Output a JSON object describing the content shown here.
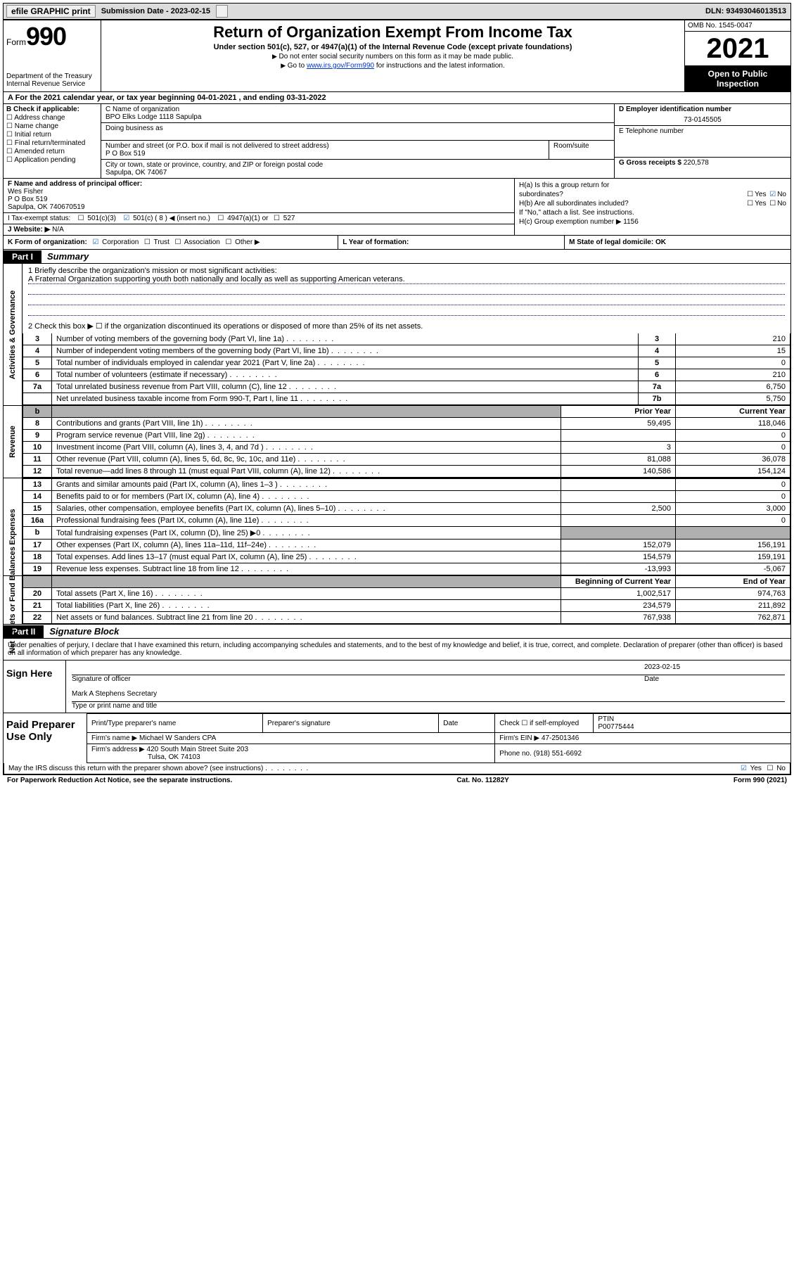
{
  "topbar": {
    "efile": "efile GRAPHIC print",
    "sub_label": "Submission Date - 2023-02-15",
    "dln": "DLN: 93493046013513"
  },
  "header": {
    "form_prefix": "Form",
    "form_number": "990",
    "dept": "Department of the Treasury",
    "irs": "Internal Revenue Service",
    "title": "Return of Organization Exempt From Income Tax",
    "sub": "Under section 501(c), 527, or 4947(a)(1) of the Internal Revenue Code (except private foundations)",
    "note1": "Do not enter social security numbers on this form as it may be made public.",
    "note2_pre": "Go to ",
    "note2_link": "www.irs.gov/Form990",
    "note2_post": " for instructions and the latest information.",
    "omb": "OMB No. 1545-0047",
    "year": "2021",
    "open": "Open to Public Inspection"
  },
  "row_a": "A For the 2021 calendar year, or tax year beginning 04-01-2021  , and ending 03-31-2022",
  "b": {
    "label": "B Check if applicable:",
    "opts": [
      "Address change",
      "Name change",
      "Initial return",
      "Final return/terminated",
      "Amended return",
      "Application pending"
    ]
  },
  "c": {
    "name_lbl": "C Name of organization",
    "name": "BPO Elks Lodge 1118 Sapulpa",
    "dba": "Doing business as",
    "addr_lbl": "Number and street (or P.O. box if mail is not delivered to street address)",
    "addr": "P O Box 519",
    "room_lbl": "Room/suite",
    "city_lbl": "City or town, state or province, country, and ZIP or foreign postal code",
    "city": "Sapulpa, OK  74067"
  },
  "d": {
    "ein_lbl": "D Employer identification number",
    "ein": "73-0145505",
    "tel_lbl": "E Telephone number",
    "gross_lbl": "G Gross receipts $ ",
    "gross": "220,578"
  },
  "f": {
    "label": "F Name and address of principal officer:",
    "name": "Wes Fisher",
    "addr1": "P O Box 519",
    "addr2": "Sapulpa, OK  740670519"
  },
  "i": {
    "label": "I  Tax-exempt status:",
    "c3": "501(c)(3)",
    "c8": "501(c) ( 8 ) ◀ (insert no.)",
    "a1": "4947(a)(1) or",
    "s527": "527"
  },
  "j": {
    "label": "J  Website: ▶",
    "val": "N/A"
  },
  "h": {
    "ha_l1": "H(a)  Is this a group return for",
    "ha_l2": "subordinates?",
    "hb_l1": "H(b)  Are all subordinates included?",
    "hb_note": "If \"No,\" attach a list. See instructions.",
    "hc": "H(c)  Group exemption number ▶  1156"
  },
  "k": {
    "label": "K Form of organization:",
    "corp": "Corporation",
    "trust": "Trust",
    "assoc": "Association",
    "other": "Other ▶",
    "l_label": "L Year of formation:",
    "m_label": "M State of legal domicile: OK"
  },
  "part1": {
    "tab": "Part I",
    "title": "Summary"
  },
  "governance": {
    "vlabel": "Activities & Governance",
    "l1a": "1 Briefly describe the organization's mission or most significant activities:",
    "l1b": "A Fraternal Organization supporting youth both nationally and locally as well as supporting American veterans.",
    "l2": "2  Check this box ▶ ☐  if the organization discontinued its operations or disposed of more than 25% of its net assets.",
    "rows": [
      {
        "n": "3",
        "d": "Number of voting members of the governing body (Part VI, line 1a)",
        "c": "3",
        "v": "210"
      },
      {
        "n": "4",
        "d": "Number of independent voting members of the governing body (Part VI, line 1b)",
        "c": "4",
        "v": "15"
      },
      {
        "n": "5",
        "d": "Total number of individuals employed in calendar year 2021 (Part V, line 2a)",
        "c": "5",
        "v": "0"
      },
      {
        "n": "6",
        "d": "Total number of volunteers (estimate if necessary)",
        "c": "6",
        "v": "210"
      },
      {
        "n": "7a",
        "d": "Total unrelated business revenue from Part VIII, column (C), line 12",
        "c": "7a",
        "v": "6,750"
      },
      {
        "n": "",
        "d": "Net unrelated business taxable income from Form 990-T, Part I, line 11",
        "c": "7b",
        "v": "5,750"
      }
    ]
  },
  "revenue": {
    "vlabel": "Revenue",
    "hdr_prior": "Prior Year",
    "hdr_curr": "Current Year",
    "rows": [
      {
        "n": "8",
        "d": "Contributions and grants (Part VIII, line 1h)",
        "p": "59,495",
        "c": "118,046"
      },
      {
        "n": "9",
        "d": "Program service revenue (Part VIII, line 2g)",
        "p": "",
        "c": "0"
      },
      {
        "n": "10",
        "d": "Investment income (Part VIII, column (A), lines 3, 4, and 7d )",
        "p": "3",
        "c": "0"
      },
      {
        "n": "11",
        "d": "Other revenue (Part VIII, column (A), lines 5, 6d, 8c, 9c, 10c, and 11e)",
        "p": "81,088",
        "c": "36,078"
      },
      {
        "n": "12",
        "d": "Total revenue—add lines 8 through 11 (must equal Part VIII, column (A), line 12)",
        "p": "140,586",
        "c": "154,124"
      }
    ]
  },
  "expenses": {
    "vlabel": "Expenses",
    "rows": [
      {
        "n": "13",
        "d": "Grants and similar amounts paid (Part IX, column (A), lines 1–3 )",
        "p": "",
        "c": "0"
      },
      {
        "n": "14",
        "d": "Benefits paid to or for members (Part IX, column (A), line 4)",
        "p": "",
        "c": "0"
      },
      {
        "n": "15",
        "d": "Salaries, other compensation, employee benefits (Part IX, column (A), lines 5–10)",
        "p": "2,500",
        "c": "3,000"
      },
      {
        "n": "16a",
        "d": "Professional fundraising fees (Part IX, column (A), line 11e)",
        "p": "",
        "c": "0"
      },
      {
        "n": "b",
        "d": "Total fundraising expenses (Part IX, column (D), line 25) ▶0",
        "p": "shaded",
        "c": "shaded"
      },
      {
        "n": "17",
        "d": "Other expenses (Part IX, column (A), lines 11a–11d, 11f–24e)",
        "p": "152,079",
        "c": "156,191"
      },
      {
        "n": "18",
        "d": "Total expenses. Add lines 13–17 (must equal Part IX, column (A), line 25)",
        "p": "154,579",
        "c": "159,191"
      },
      {
        "n": "19",
        "d": "Revenue less expenses. Subtract line 18 from line 12",
        "p": "-13,993",
        "c": "-5,067"
      }
    ]
  },
  "netassets": {
    "vlabel": "Net Assets or Fund Balances",
    "hdr_begin": "Beginning of Current Year",
    "hdr_end": "End of Year",
    "rows": [
      {
        "n": "20",
        "d": "Total assets (Part X, line 16)",
        "p": "1,002,517",
        "c": "974,763"
      },
      {
        "n": "21",
        "d": "Total liabilities (Part X, line 26)",
        "p": "234,579",
        "c": "211,892"
      },
      {
        "n": "22",
        "d": "Net assets or fund balances. Subtract line 21 from line 20",
        "p": "767,938",
        "c": "762,871"
      }
    ]
  },
  "part2": {
    "tab": "Part II",
    "title": "Signature Block"
  },
  "penalty": "Under penalties of perjury, I declare that I have examined this return, including accompanying schedules and statements, and to the best of my knowledge and belief, it is true, correct, and complete. Declaration of preparer (other than officer) is based on all information of which preparer has any knowledge.",
  "sign": {
    "left": "Sign Here",
    "sig_lbl": "Signature of officer",
    "date": "2023-02-15",
    "date_lbl": "Date",
    "name": "Mark A Stephens Secretary",
    "name_lbl": "Type or print name and title"
  },
  "paid": {
    "left": "Paid Preparer Use Only",
    "h1": "Print/Type preparer's name",
    "h2": "Preparer's signature",
    "h3": "Date",
    "h4a": "Check ☐ if self-employed",
    "h4b": "PTIN",
    "ptin": "P00775444",
    "firm_lbl": "Firm's name   ▶",
    "firm": "Michael W Sanders CPA",
    "ein_lbl": "Firm's EIN ▶",
    "ein": "47-2501346",
    "addr_lbl": "Firm's address ▶",
    "addr": "420 South Main Street Suite 203",
    "addr2": "Tulsa, OK  74103",
    "phone_lbl": "Phone no.",
    "phone": "(918) 551-6692"
  },
  "footer": {
    "may": "May the IRS discuss this return with the preparer shown above? (see instructions)",
    "yes": "Yes",
    "no": "No",
    "pra": "For Paperwork Reduction Act Notice, see the separate instructions.",
    "cat": "Cat. No. 11282Y",
    "form": "Form 990 (2021)"
  }
}
